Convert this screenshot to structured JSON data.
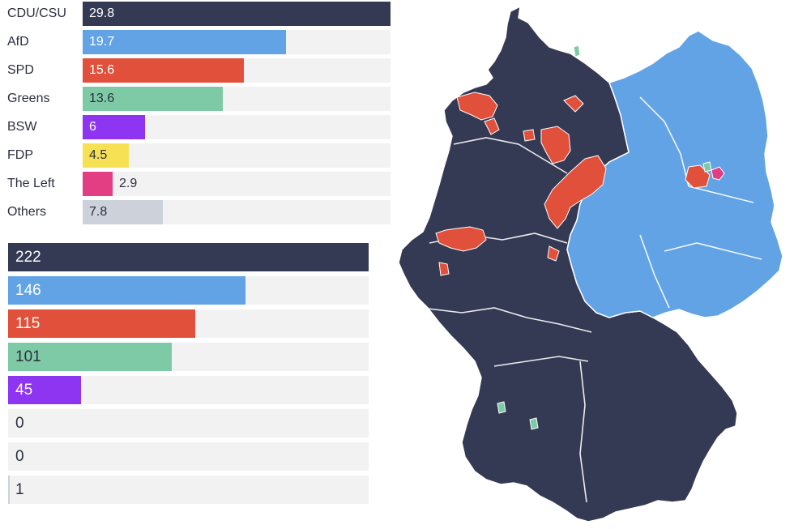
{
  "colors": {
    "cdu_csu": "#353a54",
    "afd": "#62a3e6",
    "spd": "#e1503a",
    "greens": "#7fcaa6",
    "bsw": "#8d35f0",
    "fdp": "#f6e154",
    "left": "#e33d83",
    "others": "#cdd1da",
    "track": "#f2f2f2"
  },
  "chart_data": [
    {
      "type": "bar",
      "orientation": "horizontal",
      "categories": [
        "CDU/CSU",
        "AfD",
        "SPD",
        "Greens",
        "BSW",
        "FDP",
        "The Left",
        "Others"
      ],
      "values": [
        29.8,
        19.7,
        15.6,
        13.6,
        6,
        4.5,
        2.9,
        7.8
      ],
      "value_labels": [
        "29.8",
        "19.7",
        "15.6",
        "13.6",
        "6",
        "4.5",
        "2.9",
        "7.8"
      ],
      "xlim": [
        0,
        29.8
      ]
    },
    {
      "type": "bar",
      "orientation": "horizontal",
      "values": [
        222,
        146,
        115,
        101,
        45,
        0,
        0,
        1
      ],
      "value_labels": [
        "222",
        "146",
        "115",
        "101",
        "45",
        "0",
        "0",
        "1"
      ],
      "xlim": [
        0,
        222
      ]
    }
  ]
}
